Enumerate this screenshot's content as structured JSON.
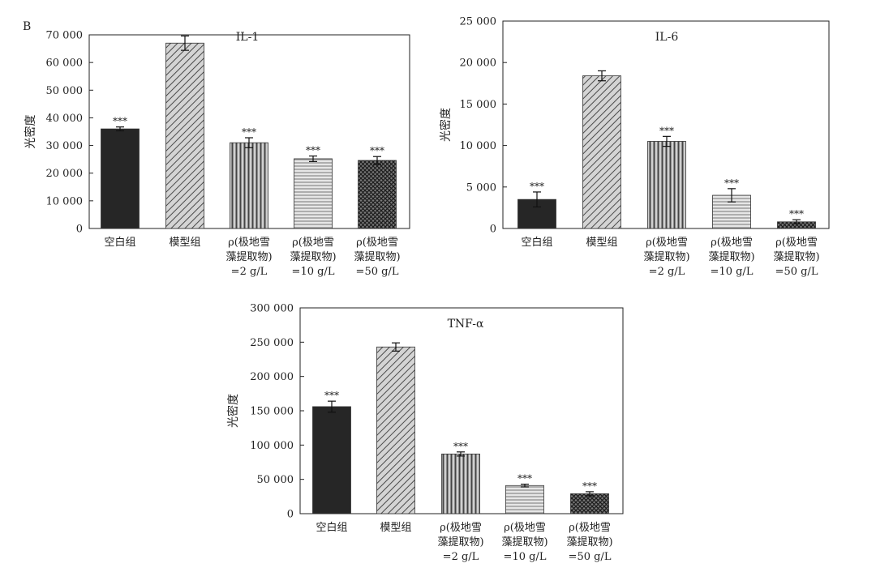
{
  "panel_label": "B",
  "chart_data": [
    {
      "type": "bar",
      "title": "IL-1",
      "ylabel": "光密度",
      "xlabel": "",
      "ylim": [
        0,
        70000
      ],
      "yticks": [
        0,
        10000,
        20000,
        30000,
        40000,
        50000,
        60000,
        70000
      ],
      "ytick_labels": [
        "0",
        "10 000",
        "20 000",
        "30 000",
        "40 000",
        "50 000",
        "60 000",
        "70 000"
      ],
      "categories": [
        [
          "空白组"
        ],
        [
          "模型组"
        ],
        [
          "ρ(极地雪",
          "藻提取物)",
          "=2 g/L"
        ],
        [
          "ρ(极地雪",
          "藻提取物)",
          "=10 g/L"
        ],
        [
          "ρ(极地雪",
          "藻提取物)",
          "=50 g/L"
        ]
      ],
      "values": [
        36000,
        67000,
        31000,
        25200,
        24600
      ],
      "errors": [
        700,
        2600,
        1800,
        1000,
        1400
      ],
      "significance": [
        "***",
        "",
        "***",
        "***",
        "***"
      ],
      "patterns": [
        "solid",
        "diag",
        "vert",
        "horiz",
        "cross"
      ]
    },
    {
      "type": "bar",
      "title": "IL-6",
      "ylabel": "光密度",
      "xlabel": "",
      "ylim": [
        0,
        25000
      ],
      "yticks": [
        0,
        5000,
        10000,
        15000,
        20000,
        25000
      ],
      "ytick_labels": [
        "0",
        "5 000",
        "10 000",
        "15 000",
        "20 000",
        "25 000"
      ],
      "categories": [
        [
          "空白组"
        ],
        [
          "模型组"
        ],
        [
          "ρ(极地雪",
          "藻提取物)",
          "=2 g/L"
        ],
        [
          "ρ(极地雪",
          "藻提取物)",
          "=10 g/L"
        ],
        [
          "ρ(极地雪",
          "藻提取物)",
          "=50 g/L"
        ]
      ],
      "values": [
        3500,
        18400,
        10500,
        4000,
        800
      ],
      "errors": [
        900,
        600,
        600,
        800,
        250
      ],
      "significance": [
        "***",
        "",
        "***",
        "***",
        "***"
      ],
      "patterns": [
        "solid",
        "diag",
        "vert",
        "horiz",
        "cross"
      ]
    },
    {
      "type": "bar",
      "title": "TNF-α",
      "ylabel": "光密度",
      "xlabel": "",
      "ylim": [
        0,
        300000
      ],
      "yticks": [
        0,
        50000,
        100000,
        150000,
        200000,
        250000,
        300000
      ],
      "ytick_labels": [
        "0",
        "50 000",
        "100 000",
        "150 000",
        "200 000",
        "250 000",
        "300 000"
      ],
      "categories": [
        [
          "空白组"
        ],
        [
          "模型组"
        ],
        [
          "ρ(极地雪",
          "藻提取物)",
          "=2 g/L"
        ],
        [
          "ρ(极地雪",
          "藻提取物)",
          "=10 g/L"
        ],
        [
          "ρ(极地雪",
          "藻提取物)",
          "=50 g/L"
        ]
      ],
      "values": [
        156000,
        243000,
        87000,
        41000,
        29000
      ],
      "errors": [
        8000,
        6000,
        3000,
        2000,
        3000
      ],
      "significance": [
        "***",
        "",
        "***",
        "***",
        "***"
      ],
      "patterns": [
        "solid",
        "diag",
        "vert",
        "horiz",
        "cross"
      ]
    }
  ]
}
